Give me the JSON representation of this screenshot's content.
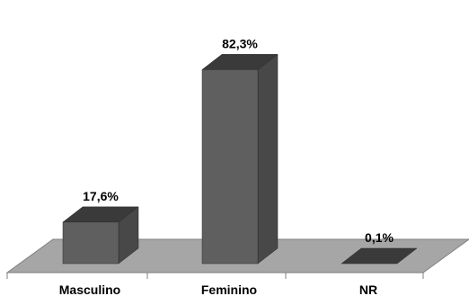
{
  "chart_data": {
    "type": "bar",
    "style": "3d-column",
    "categories": [
      "Masculino",
      "Feminino",
      "NR"
    ],
    "values": [
      17.6,
      82.3,
      0.1
    ],
    "value_labels": [
      "17,6%",
      "82,3%",
      "0,1%"
    ],
    "title": "",
    "xlabel": "",
    "ylabel": "",
    "ylim": [
      0,
      100
    ],
    "grid": false,
    "legend": "none",
    "colors": {
      "bar_front": "#5f5f5f",
      "bar_top": "#3a3a3a",
      "bar_side": "#484848",
      "floor": "#a6a6a6",
      "floor_edge": "#7f7f7f"
    }
  }
}
